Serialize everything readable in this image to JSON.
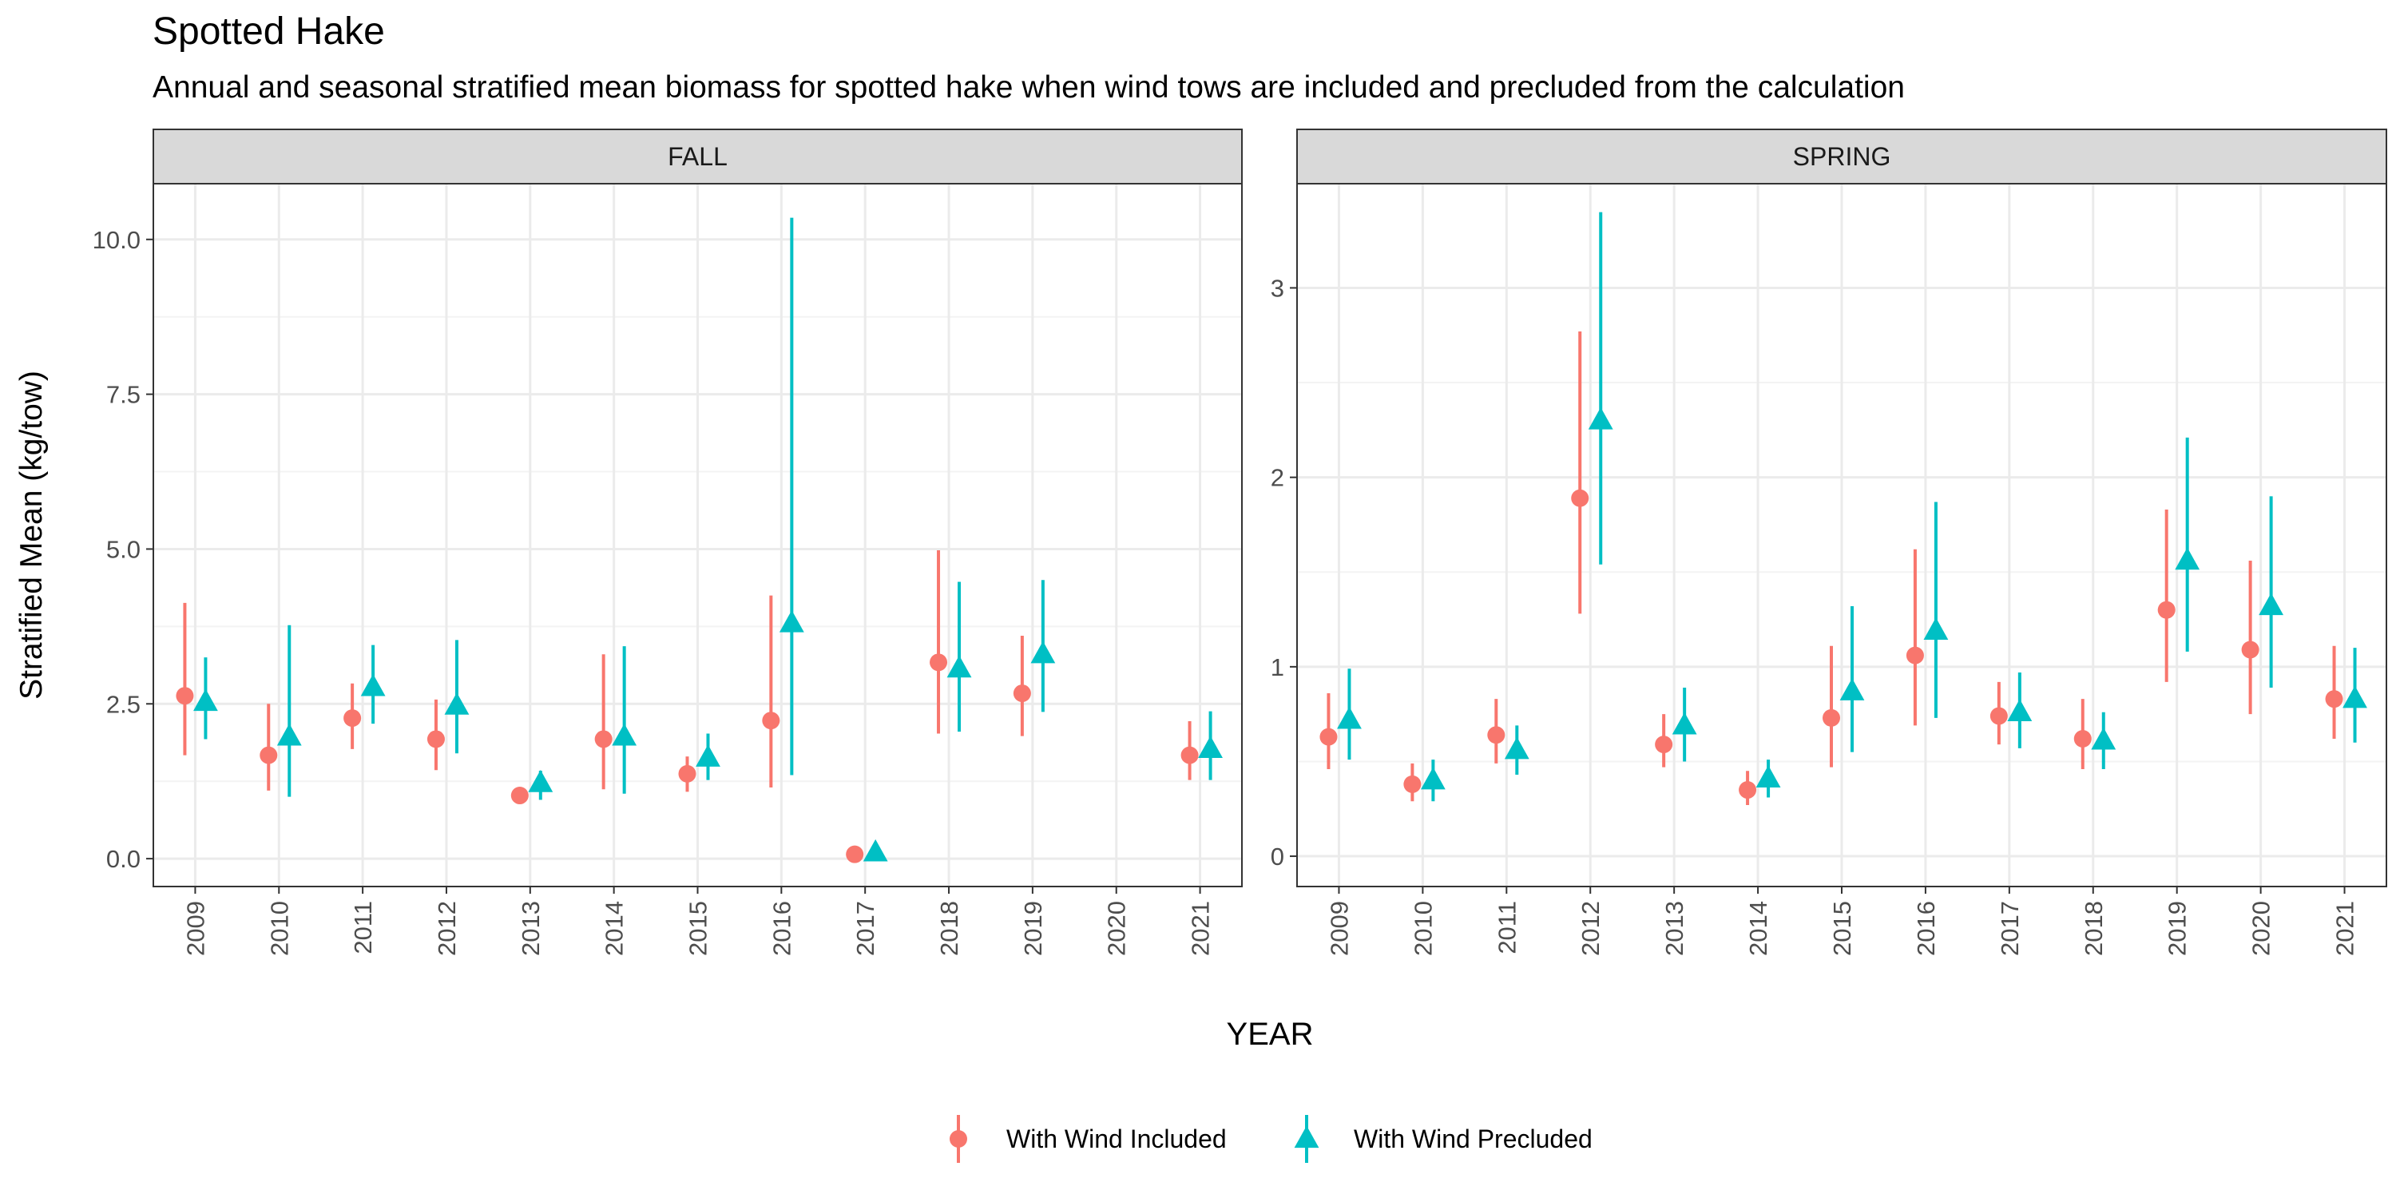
{
  "title": "Spotted Hake",
  "subtitle": "Annual and seasonal stratified mean biomass for spotted hake when wind tows are included and precluded from the calculation",
  "colors": {
    "included": "#F8766D",
    "precluded": "#00BFC4",
    "strip_fill": "#D9D9D9",
    "grid": "#EBEBEB",
    "border": "#333333"
  },
  "chart_data": [
    {
      "type": "scatter",
      "facet": "FALL",
      "xlabel": "YEAR",
      "ylabel": "Stratified Mean (kg/tow)",
      "categories": [
        "2009",
        "2010",
        "2011",
        "2012",
        "2013",
        "2014",
        "2015",
        "2016",
        "2017",
        "2018",
        "2019",
        "2020",
        "2021"
      ],
      "ylim": [
        -0.45,
        10.9
      ],
      "yticks": [
        0,
        2.5,
        5,
        7.5,
        10
      ],
      "ytick_labels": [
        "0.0",
        "2.5",
        "5.0",
        "7.5",
        "10.0"
      ],
      "series": [
        {
          "name": "With Wind Included",
          "marker": "circle",
          "values": [
            2.63,
            1.67,
            2.27,
            1.93,
            1.02,
            1.93,
            1.37,
            2.23,
            0.07,
            3.17,
            2.67,
            null,
            1.67
          ],
          "lower": [
            1.67,
            1.1,
            1.77,
            1.43,
            0.9,
            1.12,
            1.08,
            1.15,
            0.03,
            2.02,
            1.98,
            null,
            1.27
          ],
          "upper": [
            4.13,
            2.5,
            2.83,
            2.57,
            1.15,
            3.3,
            1.65,
            4.25,
            0.12,
            4.98,
            3.6,
            null,
            2.22
          ]
        },
        {
          "name": "With Wind Precluded",
          "marker": "triangle",
          "values": [
            2.53,
            1.97,
            2.77,
            2.47,
            1.22,
            1.97,
            1.63,
            3.8,
            0.1,
            3.07,
            3.3,
            null,
            1.77
          ],
          "lower": [
            1.93,
            1.0,
            2.18,
            1.7,
            0.95,
            1.05,
            1.27,
            1.35,
            0.05,
            2.05,
            2.37,
            null,
            1.27
          ],
          "upper": [
            3.25,
            3.77,
            3.45,
            3.53,
            1.42,
            3.43,
            2.02,
            10.35,
            0.15,
            4.47,
            4.5,
            null,
            2.38
          ]
        }
      ]
    },
    {
      "type": "scatter",
      "facet": "SPRING",
      "xlabel": "YEAR",
      "ylabel": "Stratified Mean (kg/tow)",
      "categories": [
        "2009",
        "2010",
        "2011",
        "2012",
        "2013",
        "2014",
        "2015",
        "2016",
        "2017",
        "2018",
        "2019",
        "2020",
        "2021"
      ],
      "ylim": [
        -0.16,
        3.55
      ],
      "yticks": [
        0,
        1,
        2,
        3
      ],
      "ytick_labels": [
        "0",
        "1",
        "2",
        "3"
      ],
      "series": [
        {
          "name": "With Wind Included",
          "marker": "circle",
          "values": [
            0.63,
            0.38,
            0.64,
            1.89,
            0.59,
            0.35,
            0.73,
            1.06,
            0.74,
            0.62,
            1.3,
            1.09,
            0.83
          ],
          "lower": [
            0.46,
            0.29,
            0.49,
            1.28,
            0.47,
            0.27,
            0.47,
            0.69,
            0.59,
            0.46,
            0.92,
            0.75,
            0.62
          ],
          "upper": [
            0.86,
            0.49,
            0.83,
            2.77,
            0.75,
            0.45,
            1.11,
            1.62,
            0.92,
            0.83,
            1.83,
            1.56,
            1.11
          ]
        },
        {
          "name": "With Wind Precluded",
          "marker": "triangle",
          "values": [
            0.72,
            0.4,
            0.56,
            2.3,
            0.69,
            0.41,
            0.87,
            1.19,
            0.76,
            0.61,
            1.56,
            1.32,
            0.83
          ],
          "lower": [
            0.51,
            0.29,
            0.43,
            1.54,
            0.5,
            0.31,
            0.55,
            0.73,
            0.57,
            0.46,
            1.08,
            0.89,
            0.6
          ],
          "upper": [
            0.99,
            0.51,
            0.69,
            3.4,
            0.89,
            0.51,
            1.32,
            1.87,
            0.97,
            0.76,
            2.21,
            1.9,
            1.1
          ]
        }
      ]
    }
  ],
  "legend": {
    "position": "bottom",
    "items": [
      "With Wind Included",
      "With Wind Precluded"
    ]
  }
}
